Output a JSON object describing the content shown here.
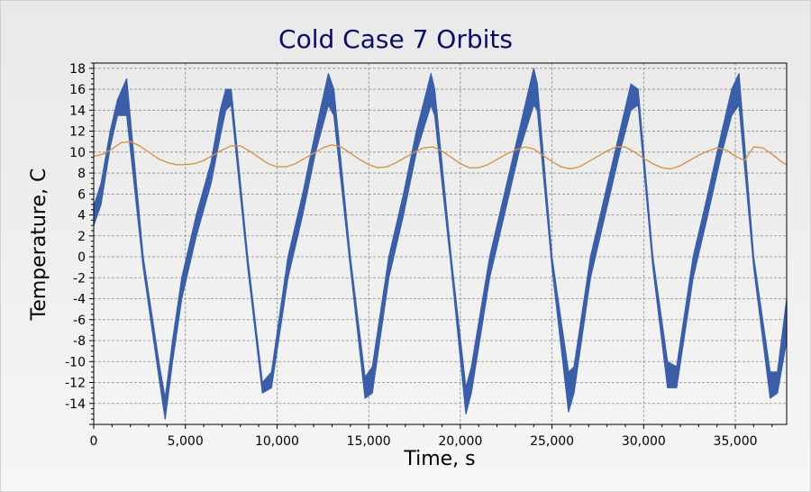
{
  "chart_data": {
    "type": "line",
    "title": "Cold Case 7 Orbits",
    "xlabel": "Time, s",
    "ylabel": "Temperature, C",
    "xlim": [
      0,
      37800
    ],
    "ylim": [
      -16,
      18.5
    ],
    "x_ticks": [
      0,
      5000,
      10000,
      15000,
      20000,
      25000,
      30000,
      35000
    ],
    "x_tick_labels": [
      "0",
      "5,000",
      "10,000",
      "15,000",
      "20,000",
      "25,000",
      "30,000",
      "35,000"
    ],
    "y_ticks": [
      -14,
      -12,
      -10,
      -8,
      -6,
      -4,
      -2,
      0,
      2,
      4,
      6,
      8,
      10,
      12,
      14,
      16,
      18
    ],
    "y_tick_labels": [
      "-14",
      "-12",
      "-10",
      "-8",
      "-6",
      "-4",
      "-2",
      "0",
      "2",
      "4",
      "6",
      "8",
      "10",
      "12",
      "14",
      "16",
      "18"
    ],
    "grid": true,
    "series": [
      {
        "color": "#3a5fa8",
        "style": "band",
        "upper": [
          [
            0,
            4.8
          ],
          [
            400,
            7
          ],
          [
            900,
            12
          ],
          [
            1300,
            15
          ],
          [
            1800,
            17
          ],
          [
            2700,
            0
          ],
          [
            3600,
            -10.5
          ],
          [
            3900,
            -13.5
          ],
          [
            4300,
            -8
          ],
          [
            4800,
            -2
          ],
          [
            5600,
            4
          ],
          [
            6400,
            9
          ],
          [
            6900,
            14
          ],
          [
            7200,
            16
          ],
          [
            7500,
            16
          ],
          [
            8400,
            0
          ],
          [
            9200,
            -12
          ],
          [
            9700,
            -11
          ],
          [
            10600,
            0
          ],
          [
            11400,
            6
          ],
          [
            12100,
            12
          ],
          [
            12800,
            17.5
          ],
          [
            13100,
            16
          ],
          [
            14000,
            0
          ],
          [
            14800,
            -11.5
          ],
          [
            15200,
            -10.5
          ],
          [
            16100,
            0
          ],
          [
            16900,
            6
          ],
          [
            17600,
            12
          ],
          [
            18400,
            17.5
          ],
          [
            18600,
            16
          ],
          [
            19500,
            0
          ],
          [
            20300,
            -12.5
          ],
          [
            20600,
            -10.5
          ],
          [
            21600,
            0
          ],
          [
            22400,
            6
          ],
          [
            23200,
            12
          ],
          [
            24000,
            18
          ],
          [
            24200,
            16.5
          ],
          [
            25000,
            0
          ],
          [
            25900,
            -11
          ],
          [
            26200,
            -10.5
          ],
          [
            27100,
            0
          ],
          [
            27900,
            6
          ],
          [
            28700,
            12
          ],
          [
            29300,
            16.5
          ],
          [
            29700,
            16
          ],
          [
            30500,
            0
          ],
          [
            31300,
            -10
          ],
          [
            31800,
            -10.5
          ],
          [
            32700,
            0
          ],
          [
            33500,
            6
          ],
          [
            34200,
            11.5
          ],
          [
            34800,
            16
          ],
          [
            35200,
            17.5
          ],
          [
            36000,
            0
          ],
          [
            36900,
            -11
          ],
          [
            37300,
            -11
          ],
          [
            37800,
            -4
          ]
        ],
        "lower": [
          [
            0,
            3
          ],
          [
            400,
            5
          ],
          [
            900,
            10.5
          ],
          [
            1300,
            13.5
          ],
          [
            1800,
            13.5
          ],
          [
            2700,
            -1
          ],
          [
            3600,
            -12
          ],
          [
            3900,
            -15.5
          ],
          [
            4300,
            -10
          ],
          [
            4800,
            -4
          ],
          [
            5600,
            2
          ],
          [
            6400,
            7
          ],
          [
            6900,
            11.5
          ],
          [
            7200,
            14
          ],
          [
            7500,
            14.5
          ],
          [
            8400,
            -1
          ],
          [
            9200,
            -13
          ],
          [
            9700,
            -12.5
          ],
          [
            10600,
            -2
          ],
          [
            11400,
            4
          ],
          [
            12100,
            10
          ],
          [
            12800,
            14.5
          ],
          [
            13100,
            13.5
          ],
          [
            14000,
            -1
          ],
          [
            14800,
            -13.5
          ],
          [
            15200,
            -13
          ],
          [
            16100,
            -2
          ],
          [
            16900,
            4
          ],
          [
            17600,
            10
          ],
          [
            18400,
            14.5
          ],
          [
            18600,
            13.5
          ],
          [
            19500,
            -1
          ],
          [
            20300,
            -15
          ],
          [
            20600,
            -13
          ],
          [
            21600,
            -2
          ],
          [
            22400,
            4
          ],
          [
            23200,
            10
          ],
          [
            24000,
            14.5
          ],
          [
            24200,
            14
          ],
          [
            25000,
            -1
          ],
          [
            25900,
            -14.8
          ],
          [
            26200,
            -13
          ],
          [
            27100,
            -2
          ],
          [
            27900,
            4
          ],
          [
            28700,
            10
          ],
          [
            29300,
            14
          ],
          [
            29700,
            14.5
          ],
          [
            30500,
            -1
          ],
          [
            31300,
            -12.5
          ],
          [
            31800,
            -12.5
          ],
          [
            32700,
            -2
          ],
          [
            33500,
            4
          ],
          [
            34200,
            9.5
          ],
          [
            34800,
            13.5
          ],
          [
            35200,
            14.5
          ],
          [
            36000,
            -1
          ],
          [
            36900,
            -13.5
          ],
          [
            37300,
            -13
          ],
          [
            37800,
            -8
          ]
        ]
      },
      {
        "color": "#d4944a",
        "style": "line",
        "points": [
          [
            0,
            9.6
          ],
          [
            500,
            9.8
          ],
          [
            1000,
            10.3
          ],
          [
            1500,
            10.9
          ],
          [
            2000,
            11.0
          ],
          [
            2500,
            10.6
          ],
          [
            3000,
            10.0
          ],
          [
            3500,
            9.4
          ],
          [
            4000,
            9.0
          ],
          [
            4500,
            8.8
          ],
          [
            5000,
            8.8
          ],
          [
            5500,
            8.9
          ],
          [
            6000,
            9.2
          ],
          [
            6500,
            9.7
          ],
          [
            7000,
            10.2
          ],
          [
            7500,
            10.6
          ],
          [
            8000,
            10.6
          ],
          [
            8500,
            10.1
          ],
          [
            9000,
            9.5
          ],
          [
            9500,
            8.9
          ],
          [
            10000,
            8.6
          ],
          [
            10500,
            8.6
          ],
          [
            11000,
            8.9
          ],
          [
            11500,
            9.4
          ],
          [
            12000,
            9.9
          ],
          [
            12500,
            10.4
          ],
          [
            13000,
            10.7
          ],
          [
            13500,
            10.5
          ],
          [
            14000,
            9.9
          ],
          [
            14500,
            9.3
          ],
          [
            15000,
            8.8
          ],
          [
            15500,
            8.5
          ],
          [
            16000,
            8.6
          ],
          [
            16500,
            9.0
          ],
          [
            17000,
            9.5
          ],
          [
            17500,
            10.0
          ],
          [
            18000,
            10.4
          ],
          [
            18500,
            10.5
          ],
          [
            19000,
            10.1
          ],
          [
            19500,
            9.5
          ],
          [
            20000,
            8.9
          ],
          [
            20500,
            8.5
          ],
          [
            21000,
            8.5
          ],
          [
            21500,
            8.8
          ],
          [
            22000,
            9.3
          ],
          [
            22500,
            9.8
          ],
          [
            23000,
            10.2
          ],
          [
            23500,
            10.5
          ],
          [
            24000,
            10.3
          ],
          [
            24500,
            9.7
          ],
          [
            25000,
            9.1
          ],
          [
            25500,
            8.6
          ],
          [
            26000,
            8.4
          ],
          [
            26500,
            8.6
          ],
          [
            27000,
            9.1
          ],
          [
            27500,
            9.6
          ],
          [
            28000,
            10.1
          ],
          [
            28500,
            10.5
          ],
          [
            29000,
            10.5
          ],
          [
            29500,
            10.0
          ],
          [
            30000,
            9.4
          ],
          [
            30500,
            8.9
          ],
          [
            31000,
            8.5
          ],
          [
            31500,
            8.4
          ],
          [
            32000,
            8.7
          ],
          [
            32500,
            9.2
          ],
          [
            33000,
            9.7
          ],
          [
            33500,
            10.1
          ],
          [
            34000,
            10.4
          ],
          [
            34500,
            10.2
          ],
          [
            35000,
            9.6
          ],
          [
            35500,
            9.2
          ],
          [
            36000,
            10.5
          ],
          [
            36500,
            10.4
          ],
          [
            37000,
            9.8
          ],
          [
            37500,
            9.1
          ],
          [
            37800,
            8.8
          ]
        ]
      }
    ]
  }
}
